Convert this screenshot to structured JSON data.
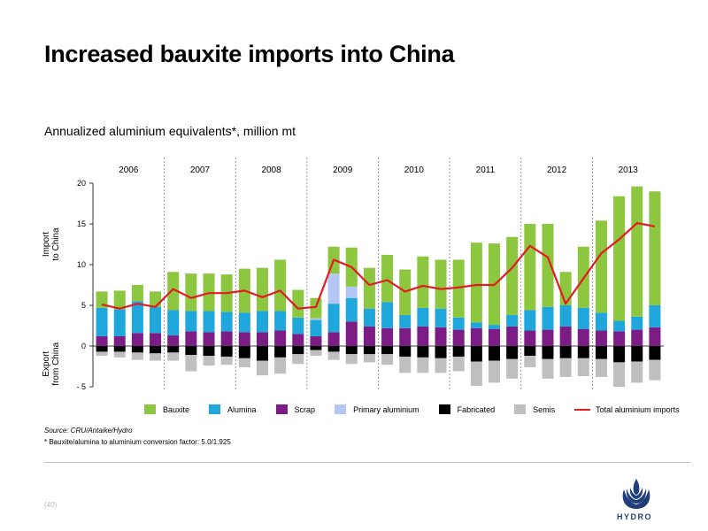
{
  "title": "Increased bauxite imports into China",
  "subtitle": "Annualized aluminium equivalents*, million mt",
  "chart_data": {
    "type": "bar",
    "stacked": true,
    "years": [
      "2006",
      "2007",
      "2008",
      "2009",
      "2010",
      "2011",
      "2012",
      "2013"
    ],
    "y_ticks": [
      "20",
      "15",
      "10",
      "5",
      "0",
      "- 5"
    ],
    "ylim": [
      -5,
      20
    ],
    "ylabel_import": "Import\nto China",
    "ylabel_export": "Export\nfrom China",
    "grid": false,
    "legend_position": "bottom",
    "series": [
      {
        "name": "Bauxite",
        "color": "#8dc63f",
        "values": [
          2.0,
          2.3,
          2.0,
          1.9,
          4.7,
          4.6,
          4.6,
          4.6,
          5.4,
          5.3,
          6.3,
          3.4,
          2.5,
          3.3,
          4.8,
          5.0,
          5.8,
          5.6,
          6.3,
          6.0,
          7.1,
          9.8,
          10.0,
          9.6,
          10.6,
          10.2,
          4.1,
          7.5,
          11.3,
          15.3,
          16.0,
          14.0
        ]
      },
      {
        "name": "Alumina",
        "color": "#1fa7dc",
        "values": [
          3.5,
          3.3,
          3.9,
          3.2,
          3.1,
          2.5,
          2.6,
          2.4,
          2.4,
          2.6,
          2.4,
          2.0,
          2.0,
          3.5,
          2.9,
          2.2,
          3.2,
          1.6,
          2.3,
          2.3,
          1.5,
          0.7,
          0.5,
          1.4,
          2.5,
          2.8,
          2.6,
          2.6,
          2.2,
          1.3,
          1.6,
          2.7
        ]
      },
      {
        "name": "Scrap",
        "color": "#7b1d84",
        "values": [
          1.2,
          1.2,
          1.6,
          1.6,
          1.3,
          1.8,
          1.7,
          1.8,
          1.7,
          1.7,
          1.9,
          1.5,
          1.2,
          1.7,
          3.0,
          2.4,
          2.2,
          2.2,
          2.4,
          2.3,
          2.0,
          2.2,
          2.1,
          2.4,
          1.9,
          2.0,
          2.4,
          2.1,
          1.9,
          1.8,
          2.0,
          2.3
        ]
      },
      {
        "name": "Primary aluminium",
        "color": "#b4c6f4",
        "values": [
          0,
          0,
          0,
          0,
          0,
          0,
          0,
          0,
          0,
          0,
          0,
          0,
          0.2,
          3.7,
          1.4,
          0,
          0,
          0,
          0,
          0,
          0,
          0,
          0,
          0,
          0,
          0,
          0,
          0,
          0,
          0,
          0,
          0
        ]
      },
      {
        "name": "Fabricated",
        "color": "#000000",
        "values": [
          -0.7,
          -0.7,
          -0.8,
          -0.9,
          -0.8,
          -1.1,
          -1.2,
          -1.3,
          -1.5,
          -1.8,
          -1.4,
          -1.0,
          -0.5,
          -0.7,
          -1.0,
          -1.0,
          -1.0,
          -1.3,
          -1.4,
          -1.5,
          -1.3,
          -1.9,
          -1.8,
          -1.6,
          -1.2,
          -1.6,
          -1.5,
          -1.5,
          -1.6,
          -2.0,
          -1.9,
          -1.7
        ]
      },
      {
        "name": "Semis",
        "color": "#bfbfbf",
        "values": [
          -0.5,
          -0.7,
          -0.9,
          -0.9,
          -1.0,
          -2.0,
          -1.2,
          -1.0,
          -1.1,
          -1.8,
          -2.0,
          -1.2,
          -0.7,
          -1.0,
          -1.2,
          -1.0,
          -1.3,
          -2.0,
          -1.9,
          -1.8,
          -1.8,
          -3.0,
          -2.7,
          -2.4,
          -1.4,
          -2.4,
          -2.3,
          -2.2,
          -2.2,
          -3.0,
          -2.6,
          -2.5
        ]
      }
    ],
    "line": {
      "name": "Total aluminium imports",
      "color": "#e31b23",
      "values": [
        5.1,
        4.6,
        5.2,
        4.8,
        7.0,
        5.9,
        6.5,
        6.5,
        6.8,
        6.0,
        6.8,
        4.6,
        4.8,
        10.6,
        9.7,
        7.5,
        8.1,
        6.7,
        7.4,
        7.0,
        7.2,
        7.5,
        7.5,
        9.6,
        12.3,
        10.9,
        5.2,
        8.3,
        11.4,
        13.1,
        15.1,
        14.7
      ]
    }
  },
  "legend": {
    "items": [
      {
        "label": "Bauxite",
        "color": "#8dc63f"
      },
      {
        "label": "Alumina",
        "color": "#1fa7dc"
      },
      {
        "label": "Scrap",
        "color": "#7b1d84"
      },
      {
        "label": "Primary aluminium",
        "color": "#b4c6f4"
      },
      {
        "label": "Fabricated",
        "color": "#000000"
      },
      {
        "label": "Semis",
        "color": "#bfbfbf"
      }
    ],
    "line_label": "Total aluminium imports",
    "line_color": "#e31b23"
  },
  "source": "Source: CRU/Antaike/Hydro",
  "footnote": "* Bauxite/alumina to aluminium conversion factor: 5.0/1.925",
  "page_number": "(40)",
  "logo": {
    "text": "HYDRO",
    "color": "#1f3e7a",
    "icon": "hydro-logo-icon"
  }
}
